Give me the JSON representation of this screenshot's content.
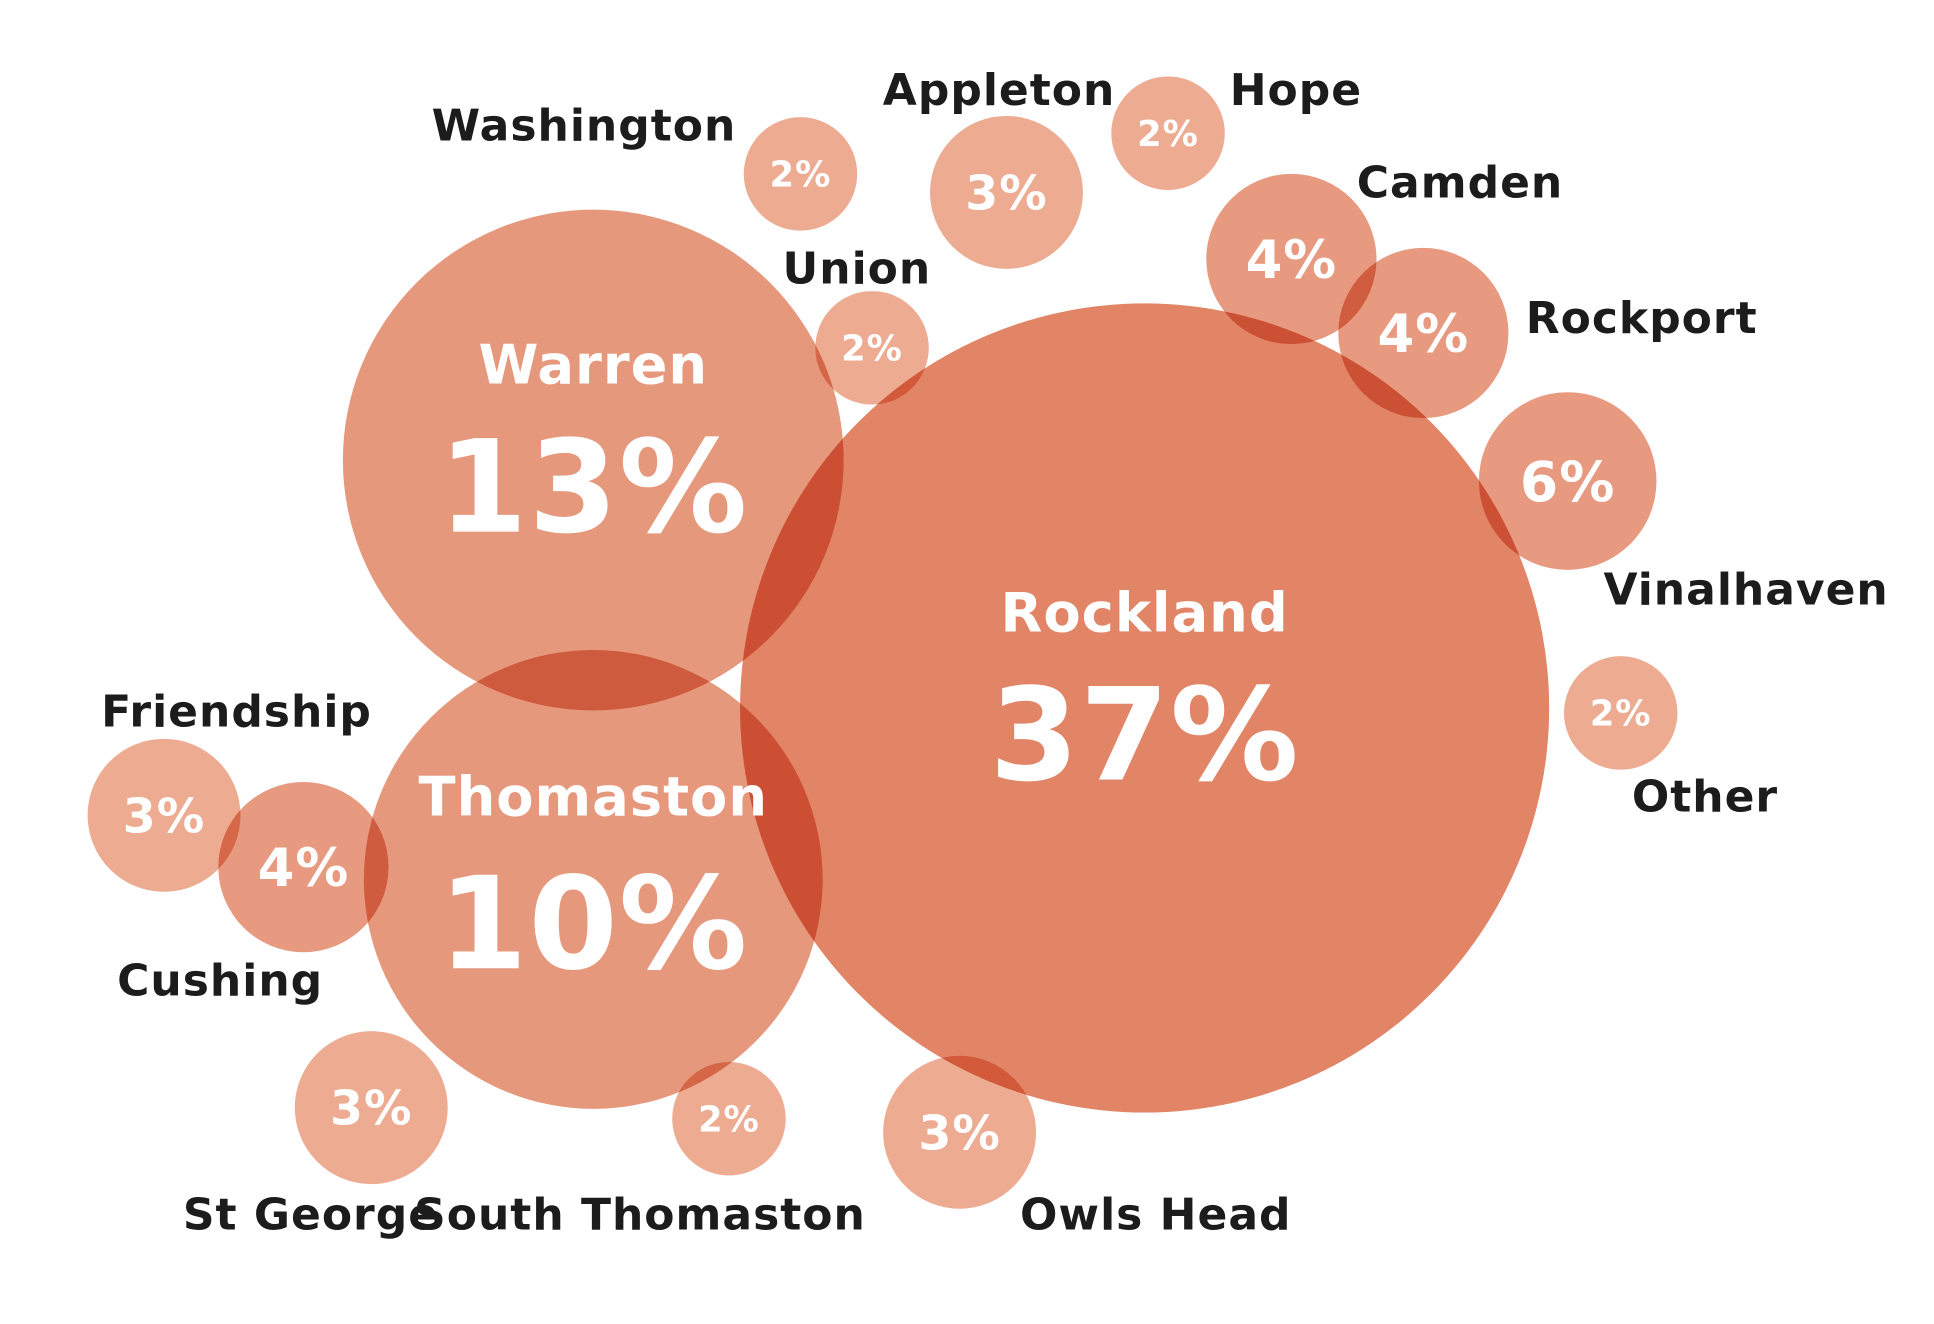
{
  "chart_data": {
    "type": "bubble",
    "unit": "%",
    "colors": {
      "large": "#e07b5a",
      "medium": "#e48f72",
      "small": "#eba386",
      "overlap": "#d9603e",
      "label": "#1c1c1c"
    },
    "points": [
      {
        "name": "Rockland",
        "value": 37,
        "display": "37%"
      },
      {
        "name": "Warren",
        "value": 13,
        "display": "13%"
      },
      {
        "name": "Thomaston",
        "value": 10,
        "display": "10%"
      },
      {
        "name": "Vinalhaven",
        "value": 6,
        "display": "6%"
      },
      {
        "name": "Camden",
        "value": 4,
        "display": "4%"
      },
      {
        "name": "Rockport",
        "value": 4,
        "display": "4%"
      },
      {
        "name": "Cushing",
        "value": 4,
        "display": "4%"
      },
      {
        "name": "Appleton",
        "value": 3,
        "display": "3%"
      },
      {
        "name": "Friendship",
        "value": 3,
        "display": "3%"
      },
      {
        "name": "St George",
        "value": 3,
        "display": "3%"
      },
      {
        "name": "Owls Head",
        "value": 3,
        "display": "3%"
      },
      {
        "name": "Washington",
        "value": 2,
        "display": "2%"
      },
      {
        "name": "Hope",
        "value": 2,
        "display": "2%"
      },
      {
        "name": "Union",
        "value": 2,
        "display": "2%"
      },
      {
        "name": "Other",
        "value": 2,
        "display": "2%"
      },
      {
        "name": "South Thomaston",
        "value": 2,
        "display": "2%"
      }
    ]
  }
}
